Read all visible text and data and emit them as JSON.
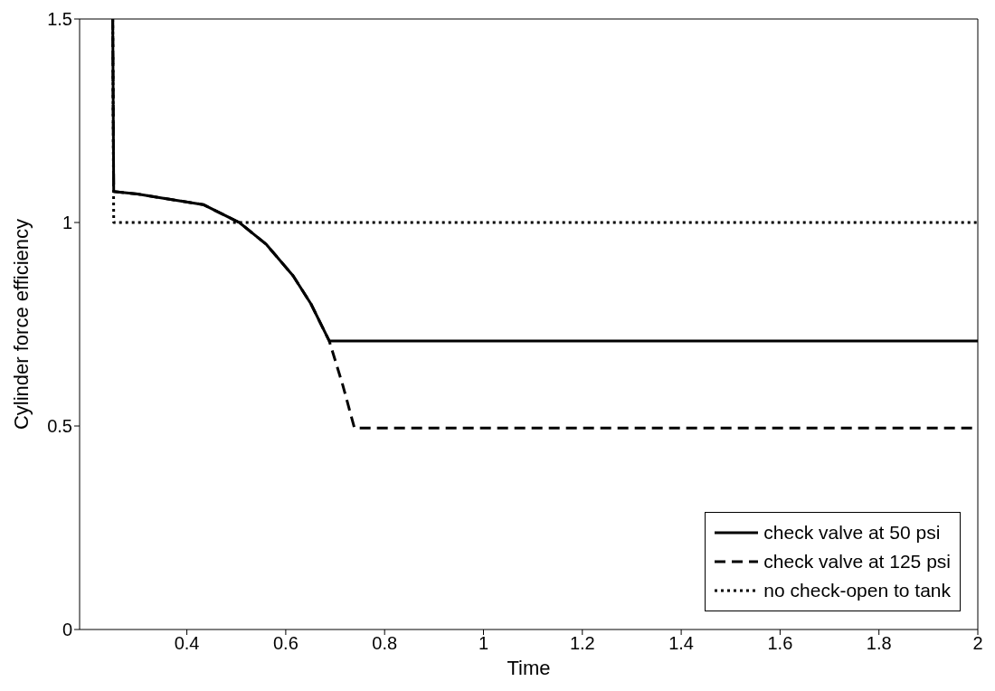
{
  "chart_data": {
    "type": "line",
    "xlabel": "Time",
    "ylabel": "Cylinder force efficiency",
    "xlim": [
      0.183,
      2
    ],
    "ylim": [
      0,
      1.5
    ],
    "xticks": [
      0.4,
      0.6,
      0.8,
      1,
      1.2,
      1.4,
      1.6,
      1.8,
      2
    ],
    "yticks": [
      0,
      0.5,
      1,
      1.5
    ],
    "grid": false,
    "legend": "bottom right",
    "marker": "none",
    "series": [
      {
        "name": "check valve at 50 psi",
        "color": "#000000",
        "line_style": "solid",
        "x": [
          0.25,
          0.252,
          0.3,
          0.35,
          0.433,
          0.506,
          0.56,
          0.615,
          0.651,
          0.688,
          2
        ],
        "values": [
          1.5,
          1.076,
          1.07,
          1.06,
          1.044,
          1.0,
          0.947,
          0.869,
          0.8,
          0.709,
          0.709
        ]
      },
      {
        "name": "check valve at 125 psi",
        "color": "#000000",
        "line_style": "dashed",
        "x": [
          0.25,
          0.252,
          0.3,
          0.35,
          0.433,
          0.506,
          0.56,
          0.615,
          0.651,
          0.688,
          0.715,
          0.739,
          2
        ],
        "values": [
          1.5,
          1.076,
          1.07,
          1.06,
          1.044,
          1.0,
          0.947,
          0.869,
          0.8,
          0.709,
          0.602,
          0.495,
          0.495
        ]
      },
      {
        "name": "no check-open to tank",
        "color": "#000000",
        "line_style": "dotted",
        "x": [
          0.25,
          0.252,
          2
        ],
        "values": [
          1.5,
          1.0,
          1.0
        ]
      }
    ]
  }
}
